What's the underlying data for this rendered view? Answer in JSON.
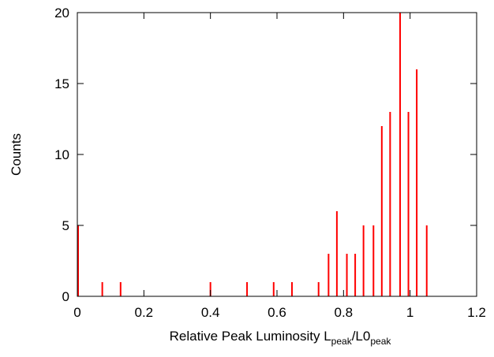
{
  "chart_data": {
    "type": "bar",
    "xlabel": "Relative Peak Luminosity L",
    "xlabel_parts": {
      "main": "Relative Peak Luminosity L",
      "sub1": "peak",
      "slash": "/L0",
      "sub2": "peak"
    },
    "ylabel": "Counts",
    "xlim": [
      0,
      1.2
    ],
    "ylim": [
      0,
      20
    ],
    "xticks": [
      0,
      0.2,
      0.4,
      0.6,
      0.8,
      1,
      1.2
    ],
    "xtick_labels": [
      "0",
      "0.2",
      "0.4",
      "0.6",
      "0.8",
      "1",
      "1.2"
    ],
    "yticks": [
      0,
      5,
      10,
      15,
      20
    ],
    "ytick_labels": [
      "0",
      "5",
      "10",
      "15",
      "20"
    ],
    "grid": false,
    "legend": "none",
    "bar_color": "#ff0000",
    "x": [
      0.0,
      0.075,
      0.13,
      0.4,
      0.51,
      0.59,
      0.645,
      0.725,
      0.755,
      0.78,
      0.81,
      0.835,
      0.86,
      0.89,
      0.915,
      0.94,
      0.97,
      0.995,
      1.02,
      1.05
    ],
    "values": [
      5,
      1,
      1,
      1,
      1,
      1,
      1,
      1,
      3,
      6,
      3,
      3,
      5,
      5,
      12,
      13,
      20,
      13,
      16,
      5
    ]
  }
}
